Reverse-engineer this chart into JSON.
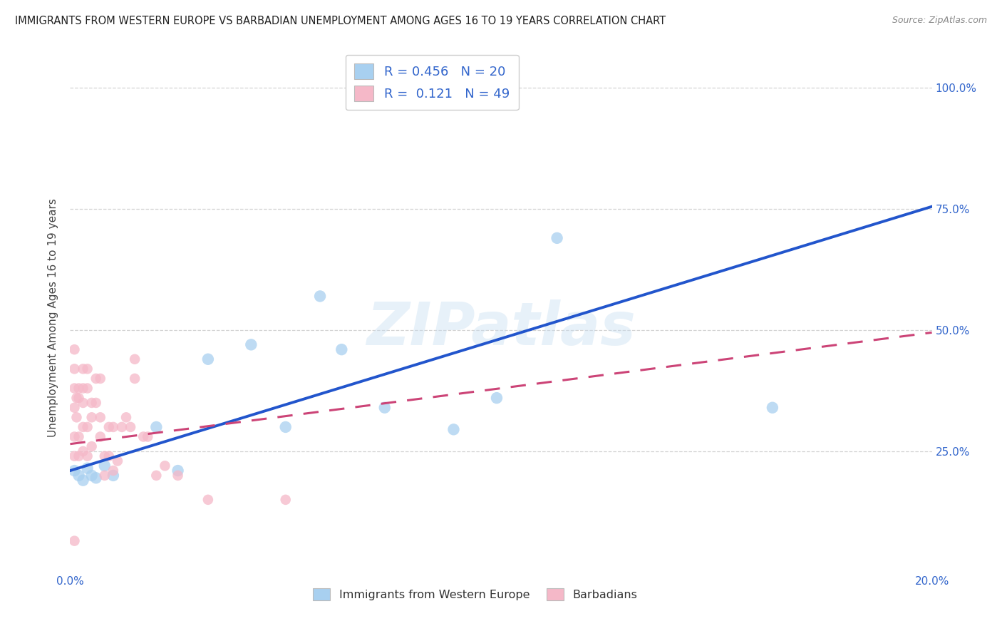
{
  "title": "IMMIGRANTS FROM WESTERN EUROPE VS BARBADIAN UNEMPLOYMENT AMONG AGES 16 TO 19 YEARS CORRELATION CHART",
  "source": "Source: ZipAtlas.com",
  "ylabel": "Unemployment Among Ages 16 to 19 years",
  "xmin": 0.0,
  "xmax": 0.2,
  "ymin": 0.0,
  "ymax": 1.05,
  "x_ticks": [
    0.0,
    0.05,
    0.1,
    0.15,
    0.2
  ],
  "y_ticks": [
    0.0,
    0.25,
    0.5,
    0.75,
    1.0
  ],
  "blue_R": 0.456,
  "blue_N": 20,
  "pink_R": 0.121,
  "pink_N": 49,
  "blue_color": "#a8d0f0",
  "blue_line_color": "#2255cc",
  "pink_color": "#f5b8c8",
  "pink_line_color": "#cc4477",
  "watermark": "ZIPatlas",
  "blue_points_x": [
    0.001,
    0.002,
    0.003,
    0.004,
    0.005,
    0.006,
    0.008,
    0.01,
    0.02,
    0.025,
    0.032,
    0.042,
    0.05,
    0.058,
    0.063,
    0.073,
    0.089,
    0.099,
    0.113,
    0.163
  ],
  "blue_points_y": [
    0.21,
    0.2,
    0.19,
    0.215,
    0.2,
    0.195,
    0.22,
    0.2,
    0.3,
    0.21,
    0.44,
    0.47,
    0.3,
    0.57,
    0.46,
    0.34,
    0.295,
    0.36,
    0.69,
    0.34
  ],
  "pink_points_x": [
    0.001,
    0.001,
    0.001,
    0.001,
    0.001,
    0.001,
    0.001,
    0.0015,
    0.0015,
    0.002,
    0.002,
    0.002,
    0.002,
    0.003,
    0.003,
    0.003,
    0.003,
    0.003,
    0.004,
    0.004,
    0.004,
    0.004,
    0.005,
    0.005,
    0.005,
    0.006,
    0.006,
    0.007,
    0.007,
    0.007,
    0.008,
    0.008,
    0.009,
    0.009,
    0.01,
    0.01,
    0.011,
    0.012,
    0.013,
    0.014,
    0.015,
    0.015,
    0.017,
    0.018,
    0.02,
    0.022,
    0.025,
    0.032,
    0.05
  ],
  "pink_points_y": [
    0.46,
    0.42,
    0.38,
    0.34,
    0.28,
    0.24,
    0.065,
    0.36,
    0.32,
    0.36,
    0.38,
    0.28,
    0.24,
    0.42,
    0.38,
    0.35,
    0.3,
    0.25,
    0.42,
    0.38,
    0.3,
    0.24,
    0.35,
    0.32,
    0.26,
    0.4,
    0.35,
    0.32,
    0.28,
    0.4,
    0.24,
    0.2,
    0.3,
    0.24,
    0.3,
    0.21,
    0.23,
    0.3,
    0.32,
    0.3,
    0.44,
    0.4,
    0.28,
    0.28,
    0.2,
    0.22,
    0.2,
    0.15,
    0.15
  ],
  "legend_label_blue": "Immigrants from Western Europe",
  "legend_label_pink": "Barbadians",
  "blue_line_x0": 0.0,
  "blue_line_y0": 0.21,
  "blue_line_x1": 0.2,
  "blue_line_y1": 0.755,
  "pink_line_x0": 0.0,
  "pink_line_y0": 0.265,
  "pink_line_x1": 0.2,
  "pink_line_y1": 0.495
}
